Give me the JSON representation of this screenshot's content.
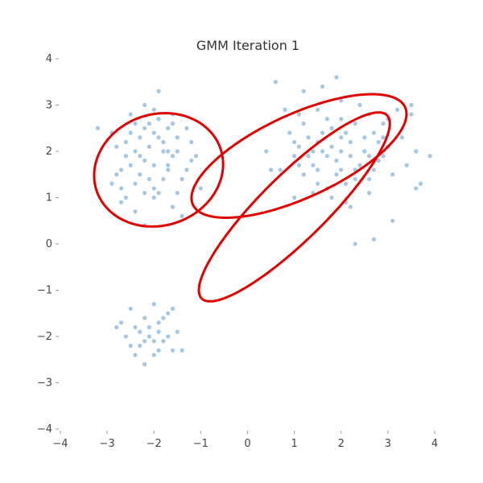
{
  "chart_data": {
    "type": "scatter",
    "title": "GMM Iteration 1",
    "xlabel": "",
    "ylabel": "",
    "xlim": [
      -4,
      4
    ],
    "ylim": [
      -4,
      4
    ],
    "xticks": [
      -4,
      -3,
      -2,
      -1,
      0,
      1,
      2,
      3,
      4
    ],
    "yticks": [
      -4,
      -3,
      -2,
      -1,
      0,
      1,
      2,
      3,
      4
    ],
    "x_tick_labels": [
      "−4",
      "−3",
      "−2",
      "−1",
      "0",
      "1",
      "2",
      "3",
      "4"
    ],
    "y_tick_labels": [
      "−4",
      "−3",
      "−2",
      "−1",
      "0",
      "1",
      "2",
      "3",
      "4"
    ],
    "grid": false,
    "colors": {
      "points": "#4f90c4",
      "ellipses": "#e00000"
    },
    "series": [
      {
        "points": [
          [
            -2.9,
            2.4
          ],
          [
            -2.8,
            2.1
          ],
          [
            -2.7,
            1.6
          ],
          [
            -2.6,
            1.9
          ],
          [
            -2.5,
            2.4
          ],
          [
            -2.4,
            1.3
          ],
          [
            -2.3,
            2.3
          ],
          [
            -2.2,
            1.8
          ],
          [
            -2.1,
            2.6
          ],
          [
            -2.0,
            1.2
          ],
          [
            -1.9,
            2.7
          ],
          [
            -1.8,
            2.2
          ],
          [
            -1.7,
            1.6
          ],
          [
            -1.6,
            2.8
          ],
          [
            -1.5,
            2.0
          ],
          [
            -1.4,
            1.4
          ],
          [
            -1.3,
            2.5
          ],
          [
            -1.2,
            1.8
          ],
          [
            -1.1,
            1.9
          ],
          [
            -1.0,
            1.2
          ],
          [
            -2.6,
            1.0
          ],
          [
            -2.4,
            0.7
          ],
          [
            -2.2,
            0.4
          ],
          [
            -2.0,
            1.0
          ],
          [
            -1.8,
            1.4
          ],
          [
            -1.6,
            0.8
          ],
          [
            -2.5,
            2.8
          ],
          [
            -2.2,
            3.0
          ],
          [
            -1.9,
            3.3
          ],
          [
            -1.7,
            2.5
          ],
          [
            -2.8,
            1.5
          ],
          [
            -2.3,
            1.5
          ],
          [
            -2.1,
            2.1
          ],
          [
            -1.9,
            2.3
          ],
          [
            -1.6,
            1.9
          ],
          [
            -1.3,
            1.6
          ],
          [
            -2.4,
            2.0
          ],
          [
            -2.0,
            1.7
          ],
          [
            -1.7,
            2.0
          ],
          [
            -1.5,
            2.3
          ],
          [
            -3.2,
            2.5
          ],
          [
            -2.9,
            1.3
          ],
          [
            -2.7,
            0.9
          ],
          [
            -2.5,
            1.7
          ],
          [
            -2.2,
            2.5
          ],
          [
            -2.0,
            2.9
          ],
          [
            -1.8,
            2.0
          ],
          [
            -1.5,
            1.1
          ],
          [
            -1.2,
            2.2
          ],
          [
            -1.4,
            0.6
          ],
          [
            -2.6,
            2.2
          ],
          [
            -2.3,
            1.9
          ],
          [
            -2.1,
            1.4
          ],
          [
            -1.9,
            1.1
          ],
          [
            -1.7,
            1.7
          ],
          [
            -2.4,
            2.6
          ],
          [
            -2.0,
            2.4
          ],
          [
            -1.6,
            2.6
          ],
          [
            -2.7,
            1.2
          ],
          [
            -2.2,
            1.1
          ],
          [
            0.6,
            3.5
          ],
          [
            0.9,
            2.4
          ],
          [
            1.0,
            1.9
          ],
          [
            1.1,
            2.8
          ],
          [
            1.2,
            1.5
          ],
          [
            1.3,
            2.3
          ],
          [
            1.4,
            1.7
          ],
          [
            1.5,
            2.9
          ],
          [
            1.6,
            2.0
          ],
          [
            1.7,
            1.2
          ],
          [
            1.8,
            2.5
          ],
          [
            1.9,
            1.8
          ],
          [
            2.0,
            2.7
          ],
          [
            2.1,
            1.3
          ],
          [
            2.2,
            2.2
          ],
          [
            2.3,
            1.6
          ],
          [
            2.4,
            3.0
          ],
          [
            2.5,
            2.0
          ],
          [
            2.6,
            1.4
          ],
          [
            2.7,
            2.4
          ],
          [
            2.8,
            1.8
          ],
          [
            2.9,
            2.6
          ],
          [
            3.0,
            2.1
          ],
          [
            3.1,
            1.5
          ],
          [
            3.2,
            2.9
          ],
          [
            3.3,
            2.3
          ],
          [
            3.4,
            1.7
          ],
          [
            3.5,
            2.8
          ],
          [
            3.6,
            2.0
          ],
          [
            3.7,
            1.3
          ],
          [
            0.4,
            2.0
          ],
          [
            0.7,
            1.6
          ],
          [
            0.8,
            2.9
          ],
          [
            1.0,
            1.0
          ],
          [
            1.2,
            3.3
          ],
          [
            1.4,
            1.1
          ],
          [
            1.6,
            3.4
          ],
          [
            1.8,
            1.0
          ],
          [
            2.0,
            3.1
          ],
          [
            2.2,
            0.8
          ],
          [
            1.1,
            2.1
          ],
          [
            1.3,
            1.9
          ],
          [
            1.5,
            1.6
          ],
          [
            1.6,
            2.4
          ],
          [
            1.7,
            1.9
          ],
          [
            1.8,
            2.1
          ],
          [
            1.9,
            1.5
          ],
          [
            2.0,
            2.0
          ],
          [
            2.1,
            2.4
          ],
          [
            2.2,
            1.9
          ],
          [
            2.3,
            2.6
          ],
          [
            2.4,
            1.7
          ],
          [
            2.5,
            2.3
          ],
          [
            2.6,
            2.8
          ],
          [
            2.7,
            1.6
          ],
          [
            2.8,
            2.2
          ],
          [
            2.9,
            1.9
          ],
          [
            3.0,
            2.7
          ],
          [
            1.5,
            2.2
          ],
          [
            2.0,
            1.6
          ],
          [
            3.5,
            3.0
          ],
          [
            3.9,
            1.9
          ],
          [
            3.1,
            0.5
          ],
          [
            2.7,
            0.1
          ],
          [
            2.3,
            0.0
          ],
          [
            3.6,
            1.2
          ],
          [
            0.5,
            1.6
          ],
          [
            1.0,
            2.2
          ],
          [
            2.6,
            1.1
          ],
          [
            2.1,
            0.9
          ],
          [
            1.2,
            2.6
          ],
          [
            1.4,
            2.0
          ],
          [
            1.7,
            2.7
          ],
          [
            2.0,
            2.3
          ],
          [
            2.3,
            1.4
          ],
          [
            2.6,
            1.9
          ],
          [
            2.9,
            2.3
          ],
          [
            1.9,
            3.6
          ],
          [
            1.5,
            1.3
          ],
          [
            1.1,
            1.7
          ],
          [
            -2.5,
            -1.4
          ],
          [
            -2.4,
            -1.8
          ],
          [
            -2.3,
            -2.2
          ],
          [
            -2.2,
            -1.6
          ],
          [
            -2.1,
            -2.0
          ],
          [
            -2.0,
            -2.4
          ],
          [
            -1.9,
            -1.7
          ],
          [
            -1.8,
            -2.1
          ],
          [
            -1.7,
            -1.5
          ],
          [
            -1.6,
            -2.3
          ],
          [
            -1.5,
            -1.9
          ],
          [
            -2.6,
            -2.0
          ],
          [
            -2.4,
            -2.4
          ],
          [
            -2.2,
            -2.6
          ],
          [
            -2.0,
            -1.3
          ],
          [
            -1.8,
            -1.6
          ],
          [
            -1.6,
            -1.4
          ],
          [
            -2.7,
            -1.7
          ],
          [
            -2.3,
            -1.9
          ],
          [
            -2.0,
            -2.1
          ],
          [
            -1.9,
            -2.3
          ],
          [
            -1.7,
            -2.0
          ],
          [
            -2.5,
            -2.2
          ],
          [
            -2.1,
            -1.8
          ],
          [
            -1.4,
            -2.3
          ],
          [
            -2.8,
            -1.8
          ],
          [
            -2.2,
            -2.1
          ],
          [
            -1.9,
            -1.9
          ]
        ]
      }
    ],
    "ellipses": [
      {
        "center": [
          -1.9,
          1.6
        ],
        "semi_axes": [
          1.4,
          1.2
        ],
        "angle_deg": 20
      },
      {
        "center": [
          1.1,
          1.9
        ],
        "semi_axes": [
          2.5,
          0.9
        ],
        "angle_deg": 25
      },
      {
        "center": [
          1.0,
          0.8
        ],
        "semi_axes": [
          2.8,
          0.7
        ],
        "angle_deg": 45
      }
    ]
  }
}
